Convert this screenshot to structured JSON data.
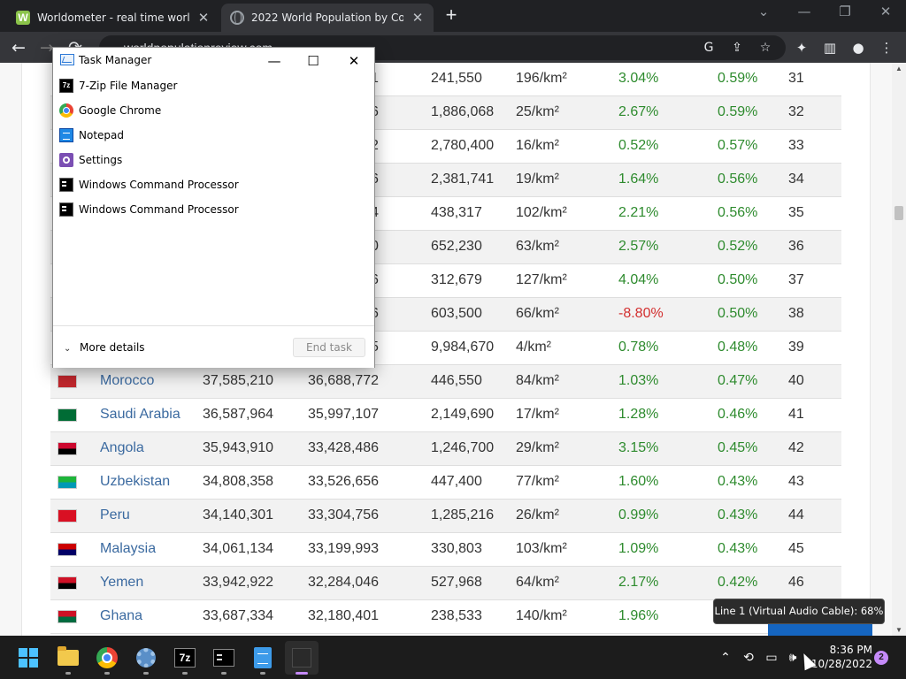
{
  "browser": {
    "tabs": [
      {
        "title": "Worldometer - real time world statistics",
        "favicon": "worldometer-icon"
      },
      {
        "title": "2022 World Population by Country",
        "favicon": "globe-icon"
      }
    ],
    "url": "worldpopulationreview.com",
    "new_tab": "+",
    "icons": {
      "back": "←",
      "forward": "→",
      "reload": "⟳",
      "minimize": "⌄",
      "min": "—",
      "restore": "❐",
      "close": "✕",
      "google": "G",
      "share": "⇪",
      "star": "☆",
      "extensions": "✦",
      "sidebar": "▥",
      "profile": "●",
      "menu": "⋮"
    }
  },
  "table": {
    "rows": [
      {
        "name": "",
        "pop2022_tail": "1",
        "area": "241,550",
        "density": "196/km²",
        "growth": "3.04%",
        "share": "0.59%",
        "rank": "31",
        "flag": []
      },
      {
        "name": "",
        "pop2022_tail": "6",
        "area": "1,886,068",
        "density": "25/km²",
        "growth": "2.67%",
        "share": "0.59%",
        "rank": "32",
        "flag": []
      },
      {
        "name": "",
        "pop2022_tail": "2",
        "area": "2,780,400",
        "density": "16/km²",
        "growth": "0.52%",
        "share": "0.57%",
        "rank": "33",
        "flag": []
      },
      {
        "name": "",
        "pop2022_tail": "6",
        "area": "2,381,741",
        "density": "19/km²",
        "growth": "1.64%",
        "share": "0.56%",
        "rank": "34",
        "flag": []
      },
      {
        "name": "",
        "pop2022_tail": "4",
        "area": "438,317",
        "density": "102/km²",
        "growth": "2.21%",
        "share": "0.56%",
        "rank": "35",
        "flag": []
      },
      {
        "name": "",
        "pop2022_tail": "0",
        "area": "652,230",
        "density": "63/km²",
        "growth": "2.57%",
        "share": "0.52%",
        "rank": "36",
        "flag": []
      },
      {
        "name": "",
        "pop2022_tail": "6",
        "area": "312,679",
        "density": "127/km²",
        "growth": "4.04%",
        "share": "0.50%",
        "rank": "37",
        "flag": []
      },
      {
        "name": "",
        "pop2022_tail": "6",
        "area": "603,500",
        "density": "66/km²",
        "growth": "-8.80%",
        "share": "0.50%",
        "rank": "38",
        "flag": [],
        "negative": true
      },
      {
        "name": "",
        "pop2022_tail": "5",
        "area": "9,984,670",
        "density": "4/km²",
        "growth": "0.78%",
        "share": "0.48%",
        "rank": "39",
        "flag": []
      },
      {
        "name": "Morocco",
        "pop2022": "37,585,210",
        "pop2020": "36,688,772",
        "area": "446,550",
        "density": "84/km²",
        "growth": "1.03%",
        "share": "0.47%",
        "rank": "40",
        "flag": [
          "#c1272d",
          "#c1272d"
        ]
      },
      {
        "name": "Saudi Arabia",
        "pop2022": "36,587,964",
        "pop2020": "35,997,107",
        "area": "2,149,690",
        "density": "17/km²",
        "growth": "1.28%",
        "share": "0.46%",
        "rank": "41",
        "flag": [
          "#006c35",
          "#006c35"
        ]
      },
      {
        "name": "Angola",
        "pop2022": "35,943,910",
        "pop2020": "33,428,486",
        "area": "1,246,700",
        "density": "29/km²",
        "growth": "3.15%",
        "share": "0.45%",
        "rank": "42",
        "flag": [
          "#cc092f",
          "#000000"
        ]
      },
      {
        "name": "Uzbekistan",
        "pop2022": "34,808,358",
        "pop2020": "33,526,656",
        "area": "447,400",
        "density": "77/km²",
        "growth": "1.60%",
        "share": "0.43%",
        "rank": "43",
        "flag": [
          "#1eb53a",
          "#0099b5"
        ]
      },
      {
        "name": "Peru",
        "pop2022": "34,140,301",
        "pop2020": "33,304,756",
        "area": "1,285,216",
        "density": "26/km²",
        "growth": "0.99%",
        "share": "0.43%",
        "rank": "44",
        "flag": [
          "#d91023",
          "#d91023"
        ]
      },
      {
        "name": "Malaysia",
        "pop2022": "34,061,134",
        "pop2020": "33,199,993",
        "area": "330,803",
        "density": "103/km²",
        "growth": "1.09%",
        "share": "0.43%",
        "rank": "45",
        "flag": [
          "#cc0001",
          "#010066"
        ]
      },
      {
        "name": "Yemen",
        "pop2022": "33,942,922",
        "pop2020": "32,284,046",
        "area": "527,968",
        "density": "64/km²",
        "growth": "2.17%",
        "share": "0.42%",
        "rank": "46",
        "flag": [
          "#ce1126",
          "#000000"
        ]
      },
      {
        "name": "Ghana",
        "pop2022": "33,687,334",
        "pop2020": "32,180,401",
        "area": "238,533",
        "density": "140/km²",
        "growth": "1.96%",
        "share": "",
        "rank": "",
        "flag": [
          "#ce1126",
          "#006b3f"
        ]
      }
    ]
  },
  "task_manager": {
    "title": "Task Manager",
    "processes": [
      {
        "name": "7-Zip File Manager",
        "icon": "sevenzip-icon"
      },
      {
        "name": "Google Chrome",
        "icon": "chrome-icon"
      },
      {
        "name": "Notepad",
        "icon": "notepad-icon"
      },
      {
        "name": "Settings",
        "icon": "settings-icon"
      },
      {
        "name": "Windows Command Processor",
        "icon": "cmd-icon"
      },
      {
        "name": "Windows Command Processor",
        "icon": "cmd-icon"
      }
    ],
    "more_details": "More details",
    "end_task": "End task",
    "controls": {
      "minimize": "—",
      "maximize": "☐",
      "close": "✕"
    }
  },
  "tooltip": "Line 1 (Virtual Audio Cable): 68%",
  "taskbar": {
    "clock_time": "8:36 PM",
    "clock_date": "10/28/2022",
    "notifications": "2",
    "tray": {
      "chevron": "⌃",
      "sync": "⟲",
      "network": "▭",
      "volume": "🕪"
    },
    "sevenzip_label": "7z"
  },
  "colors": {
    "link": "#3b6aa0",
    "positive": "#2e8b2e",
    "negative": "#d32f2f",
    "taskbar_accent": "#c58af9"
  }
}
